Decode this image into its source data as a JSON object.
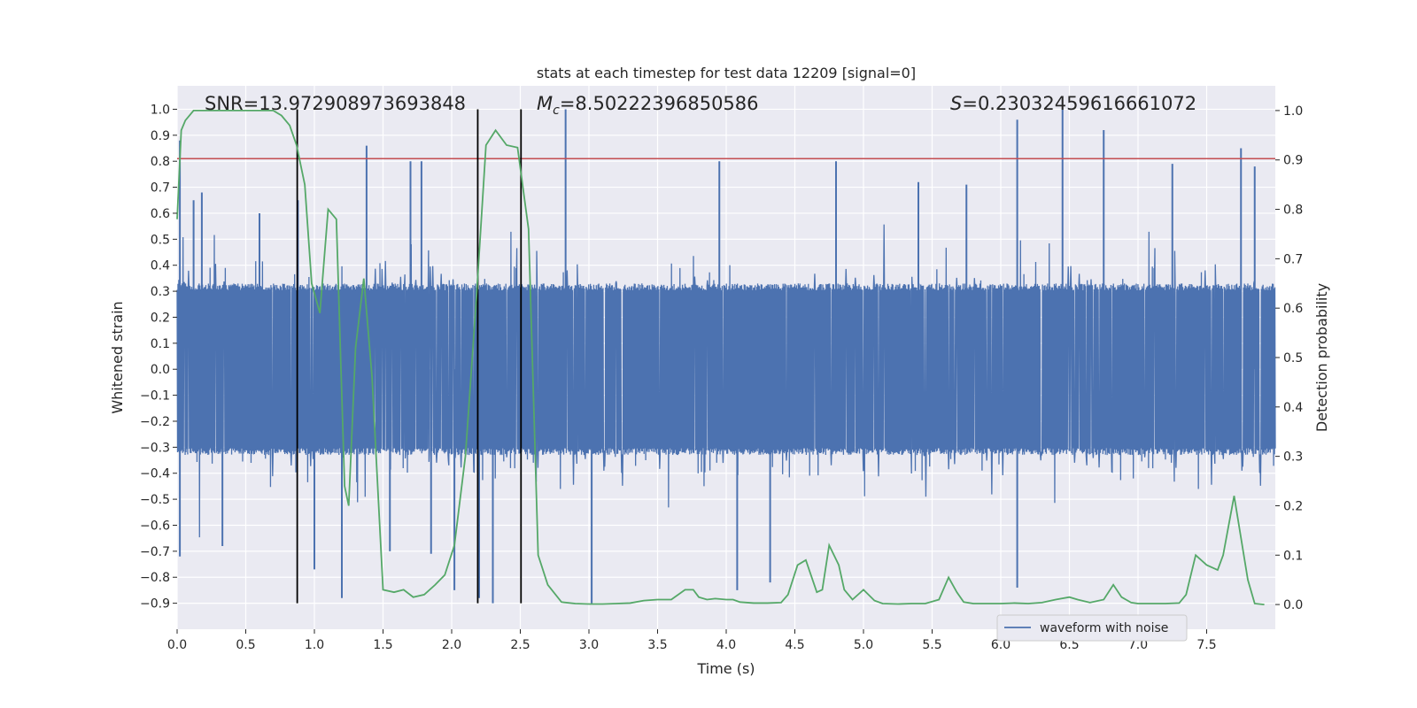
{
  "chart_data": {
    "type": "line",
    "title": "stats at each timestep for test data 12209 [signal=0]",
    "xlabel": "Time (s)",
    "ylabel_left": "Whitened strain",
    "ylabel_right": "Detection probability",
    "xlim": [
      0.0,
      8.0
    ],
    "ylim_left": [
      -1.0,
      1.09
    ],
    "ylim_right": [
      -0.05,
      1.05
    ],
    "x_ticks": [
      0.0,
      0.5,
      1.0,
      1.5,
      2.0,
      2.5,
      3.0,
      3.5,
      4.0,
      4.5,
      5.0,
      5.5,
      6.0,
      6.5,
      7.0,
      7.5
    ],
    "x_tick_labels": [
      "0.0",
      "0.5",
      "1.0",
      "1.5",
      "2.0",
      "2.5",
      "3.0",
      "3.5",
      "4.0",
      "4.5",
      "5.0",
      "5.5",
      "6.0",
      "6.5",
      "7.0",
      "7.5"
    ],
    "y_left_ticks": [
      -0.9,
      -0.8,
      -0.7,
      -0.6,
      -0.5,
      -0.4,
      -0.3,
      -0.2,
      -0.1,
      0.0,
      0.1,
      0.2,
      0.3,
      0.4,
      0.5,
      0.6,
      0.7,
      0.8,
      0.9,
      1.0
    ],
    "y_left_tick_labels": [
      "−0.9",
      "−0.8",
      "−0.7",
      "−0.6",
      "−0.5",
      "−0.4",
      "−0.3",
      "−0.2",
      "−0.1",
      "0.0",
      "0.1",
      "0.2",
      "0.3",
      "0.4",
      "0.5",
      "0.6",
      "0.7",
      "0.8",
      "0.9",
      "1.0"
    ],
    "y_right_ticks": [
      0.0,
      0.1,
      0.2,
      0.3,
      0.4,
      0.5,
      0.6,
      0.7,
      0.8,
      0.9,
      1.0
    ],
    "y_right_tick_labels": [
      "0.0",
      "0.1",
      "0.2",
      "0.3",
      "0.4",
      "0.5",
      "0.6",
      "0.7",
      "0.8",
      "0.9",
      "1.0"
    ],
    "grid": true,
    "legend_position": "lower-right",
    "annotations": {
      "snr": "SNR=13.972908973693848",
      "mc_symbol": "M",
      "mc_subscript": "c",
      "mc_value": "=8.50222396850586",
      "s_symbol": "S",
      "s_value": "=0.23032459616661072"
    },
    "threshold_line": {
      "y": 0.81,
      "color": "#c44e52"
    },
    "vertical_lines": [
      0.875,
      2.19,
      2.505
    ],
    "series": [
      {
        "name": "waveform with noise",
        "axis": "left",
        "color": "#4c72b0",
        "kind": "noise",
        "duration_s": 8.0,
        "typical_amplitude": 0.33,
        "peak_envelope": [
          -0.9,
          1.0
        ],
        "spikes": [
          {
            "x": 0.02,
            "y": 0.88
          },
          {
            "x": 0.02,
            "y": -0.72
          },
          {
            "x": 0.12,
            "y": 0.65
          },
          {
            "x": 0.18,
            "y": 0.68
          },
          {
            "x": 0.33,
            "y": -0.68
          },
          {
            "x": 0.6,
            "y": 0.6
          },
          {
            "x": 0.88,
            "y": 0.65
          },
          {
            "x": 1.0,
            "y": -0.77
          },
          {
            "x": 1.2,
            "y": -0.88
          },
          {
            "x": 1.38,
            "y": 0.86
          },
          {
            "x": 1.55,
            "y": -0.7
          },
          {
            "x": 1.7,
            "y": 0.8
          },
          {
            "x": 1.78,
            "y": 0.8
          },
          {
            "x": 1.85,
            "y": -0.71
          },
          {
            "x": 2.02,
            "y": -0.85
          },
          {
            "x": 2.2,
            "y": -0.88
          },
          {
            "x": 2.3,
            "y": -0.9
          },
          {
            "x": 2.83,
            "y": 1.0
          },
          {
            "x": 3.02,
            "y": -0.9
          },
          {
            "x": 3.95,
            "y": 0.8
          },
          {
            "x": 4.08,
            "y": -0.85
          },
          {
            "x": 4.32,
            "y": -0.82
          },
          {
            "x": 4.8,
            "y": 0.8
          },
          {
            "x": 5.4,
            "y": 0.72
          },
          {
            "x": 5.75,
            "y": 0.71
          },
          {
            "x": 6.12,
            "y": -0.84
          },
          {
            "x": 6.12,
            "y": 0.96
          },
          {
            "x": 6.45,
            "y": 1.0
          },
          {
            "x": 6.75,
            "y": 0.92
          },
          {
            "x": 7.25,
            "y": 0.79
          },
          {
            "x": 7.75,
            "y": 0.85
          },
          {
            "x": 7.85,
            "y": 0.78
          }
        ]
      },
      {
        "name": "",
        "axis": "right",
        "color": "#55a868",
        "x": [
          0.0,
          0.03,
          0.06,
          0.12,
          0.2,
          0.3,
          0.4,
          0.5,
          0.6,
          0.7,
          0.76,
          0.82,
          0.87,
          0.93,
          0.98,
          1.04,
          1.1,
          1.16,
          1.22,
          1.25,
          1.3,
          1.36,
          1.42,
          1.5,
          1.58,
          1.65,
          1.72,
          1.8,
          1.88,
          1.95,
          2.02,
          2.1,
          2.18,
          2.25,
          2.32,
          2.4,
          2.48,
          2.56,
          2.63,
          2.7,
          2.8,
          2.9,
          3.0,
          3.1,
          3.2,
          3.3,
          3.4,
          3.5,
          3.6,
          3.7,
          3.76,
          3.8,
          3.86,
          3.92,
          4.0,
          4.05,
          4.1,
          4.2,
          4.3,
          4.4,
          4.45,
          4.52,
          4.58,
          4.66,
          4.7,
          4.75,
          4.82,
          4.86,
          4.92,
          5.0,
          5.08,
          5.14,
          5.25,
          5.35,
          5.45,
          5.55,
          5.62,
          5.68,
          5.73,
          5.8,
          5.9,
          6.0,
          6.1,
          6.2,
          6.3,
          6.4,
          6.5,
          6.56,
          6.65,
          6.75,
          6.82,
          6.88,
          6.95,
          7.0,
          7.1,
          7.2,
          7.3,
          7.35,
          7.42,
          7.5,
          7.58,
          7.62,
          7.7,
          7.8,
          7.85,
          7.92
        ],
        "y": [
          0.78,
          0.96,
          0.98,
          1.0,
          1.0,
          1.0,
          1.0,
          1.0,
          1.0,
          1.0,
          0.99,
          0.97,
          0.93,
          0.85,
          0.65,
          0.59,
          0.8,
          0.78,
          0.24,
          0.2,
          0.52,
          0.66,
          0.46,
          0.03,
          0.025,
          0.03,
          0.015,
          0.02,
          0.04,
          0.06,
          0.12,
          0.3,
          0.62,
          0.93,
          0.96,
          0.93,
          0.925,
          0.76,
          0.1,
          0.04,
          0.005,
          0.002,
          0.001,
          0.001,
          0.002,
          0.003,
          0.008,
          0.01,
          0.01,
          0.03,
          0.03,
          0.015,
          0.01,
          0.012,
          0.01,
          0.01,
          0.005,
          0.003,
          0.003,
          0.004,
          0.02,
          0.08,
          0.09,
          0.025,
          0.03,
          0.12,
          0.08,
          0.03,
          0.01,
          0.03,
          0.008,
          0.002,
          0.001,
          0.002,
          0.002,
          0.01,
          0.055,
          0.025,
          0.005,
          0.002,
          0.002,
          0.002,
          0.003,
          0.002,
          0.004,
          0.01,
          0.015,
          0.01,
          0.004,
          0.01,
          0.04,
          0.015,
          0.004,
          0.002,
          0.002,
          0.002,
          0.003,
          0.02,
          0.1,
          0.08,
          0.07,
          0.1,
          0.22,
          0.05,
          0.002,
          0.0
        ]
      }
    ]
  }
}
